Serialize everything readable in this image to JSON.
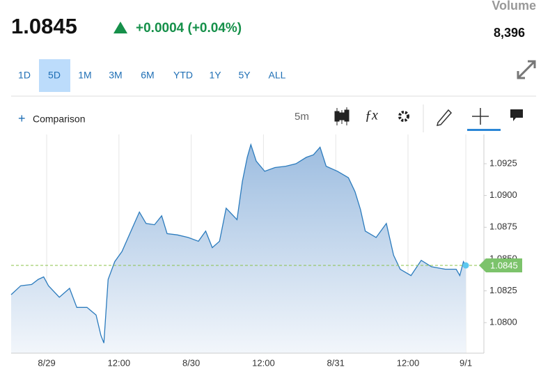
{
  "header": {
    "price": "1.0845",
    "change": "+0.0004 (+0.04%)",
    "volume_label": "Volume",
    "volume": "8,396"
  },
  "ranges": [
    "1D",
    "5D",
    "1M",
    "3M",
    "6M",
    "YTD",
    "1Y",
    "5Y",
    "ALL"
  ],
  "toolbar": {
    "comparison": "Comparison",
    "interval": "5m"
  },
  "chart_data": {
    "type": "area",
    "color": "#2b7bbd",
    "x": [
      -5.9,
      -4.3,
      -2.5,
      -1.4,
      -0.5,
      0.3,
      2.1,
      3.8,
      5.0,
      6.7,
      8.2,
      9.0,
      9.5,
      10.2,
      11.3,
      12.5,
      14.0,
      15.4,
      16.5,
      17.9,
      19.1,
      20.0,
      21.7,
      23.5,
      25.2,
      26.4,
      27.5,
      28.7,
      29.8,
      31.6,
      32.5,
      33.3,
      33.9,
      34.8,
      36.2,
      37.9,
      39.7,
      41.4,
      43.1,
      44.3,
      45.4,
      46.4,
      48.3,
      50.1,
      51.2,
      52.1,
      52.9,
      54.7,
      56.4,
      57.6,
      58.7,
      60.5,
      62.2,
      63.9,
      66.2,
      68.0,
      68.6,
      69.2,
      69.6
    ],
    "values": [
      1.0822,
      1.0829,
      1.083,
      1.0834,
      1.0836,
      1.0829,
      1.082,
      1.0827,
      1.0812,
      1.0812,
      1.0806,
      1.079,
      1.0784,
      1.0834,
      1.0848,
      1.0856,
      1.0872,
      1.0887,
      1.0878,
      1.0877,
      1.0884,
      1.087,
      1.0869,
      1.0867,
      1.0864,
      1.0872,
      1.0859,
      1.0864,
      1.089,
      1.0881,
      1.0911,
      1.093,
      1.094,
      1.0927,
      1.0919,
      1.0922,
      1.0923,
      1.0925,
      1.093,
      1.0932,
      1.0938,
      1.0923,
      1.0919,
      1.0914,
      1.0903,
      1.0889,
      1.0872,
      1.0867,
      1.0878,
      1.0853,
      1.0842,
      1.0837,
      1.0849,
      1.0844,
      1.0842,
      1.0842,
      1.0837,
      1.0848,
      1.0845
    ],
    "xlim": [
      -5.9,
      72.6
    ],
    "xticks": [
      {
        "value": 0,
        "label": "8/29"
      },
      {
        "value": 12,
        "label": "12:00"
      },
      {
        "value": 24,
        "label": "8/30"
      },
      {
        "value": 36,
        "label": "12:00"
      },
      {
        "value": 48,
        "label": "8/31"
      },
      {
        "value": 60,
        "label": "12:00"
      },
      {
        "value": 69.6,
        "label": "9/1"
      }
    ],
    "ylim": [
      1.0776,
      1.0948
    ],
    "yticks": [
      {
        "value": 1.08,
        "label": "1.0800"
      },
      {
        "value": 1.0825,
        "label": "1.0825"
      },
      {
        "value": 1.085,
        "label": "1.0850"
      },
      {
        "value": 1.0875,
        "label": "1.0875"
      },
      {
        "value": 1.09,
        "label": "1.0900"
      },
      {
        "value": 1.0925,
        "label": "1.0925"
      }
    ],
    "grid": true
  }
}
